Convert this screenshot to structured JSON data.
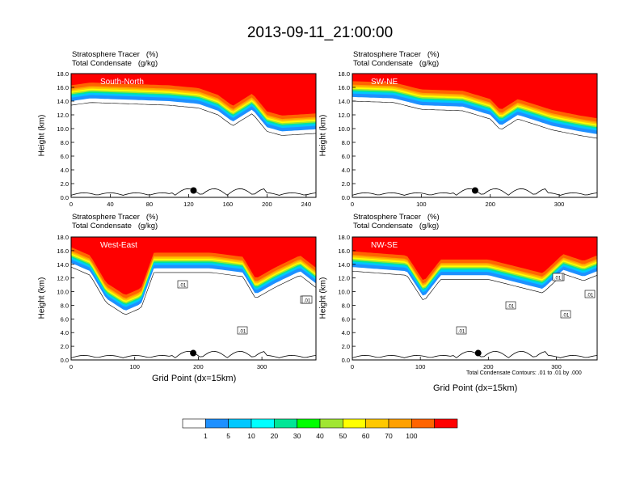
{
  "title": "2013-09-11_21:00:00",
  "panel_label_line1": "Stratosphere Tracer   (%)",
  "panel_label_line2": "Total Condensate   (g/kg)",
  "ylabel": "Height (km)",
  "xlabel": "Grid Point (dx=15km)",
  "contour_note": "Total Condensate Contours: .01 to .01 by .000",
  "colors": [
    "#ffffff",
    "#1e90ff",
    "#00c8ff",
    "#00ffff",
    "#00e696",
    "#00ff00",
    "#a0e632",
    "#ffff00",
    "#ffc800",
    "#ffa000",
    "#ff6400",
    "#ff0000"
  ],
  "colorbar_labels": [
    "1",
    "5",
    "10",
    "20",
    "30",
    "40",
    "50",
    "60",
    "70",
    "100"
  ],
  "chart_data": [
    {
      "type": "heatmap",
      "title": "South-North",
      "xlabel": "",
      "ylabel": "Height (km)",
      "xlim": [
        0,
        250
      ],
      "ylim": [
        0,
        18
      ],
      "x_ticks": [
        0,
        40,
        80,
        120,
        160,
        200,
        240
      ],
      "y_ticks": [
        "0.0",
        "2.0",
        "4.0",
        "6.0",
        "8.0",
        "10.0",
        "12.0",
        "14.0",
        "16.0",
        "18.0"
      ],
      "tracer_boundary_km": [
        [
          0,
          14.0
        ],
        [
          20,
          14.4
        ],
        [
          60,
          14.2
        ],
        [
          100,
          14.0
        ],
        [
          130,
          13.6
        ],
        [
          150,
          12.6
        ],
        [
          165,
          11.0
        ],
        [
          185,
          12.8
        ],
        [
          200,
          10.2
        ],
        [
          215,
          9.6
        ],
        [
          250,
          9.9
        ]
      ],
      "marker": {
        "x": 125,
        "y": 1.0
      },
      "contour_labels": []
    },
    {
      "type": "heatmap",
      "title": "SW-NE",
      "xlabel": "",
      "ylabel": "Height (km)",
      "xlim": [
        0,
        355
      ],
      "ylim": [
        0,
        18
      ],
      "x_ticks": [
        0,
        100,
        200,
        300
      ],
      "y_ticks": [
        "0.0",
        "2.0",
        "4.0",
        "6.0",
        "8.0",
        "10.0",
        "12.0",
        "14.0",
        "16.0",
        "18.0"
      ],
      "tracer_boundary_km": [
        [
          0,
          14.6
        ],
        [
          60,
          14.4
        ],
        [
          100,
          13.4
        ],
        [
          160,
          13.2
        ],
        [
          200,
          12.0
        ],
        [
          215,
          10.4
        ],
        [
          240,
          12.0
        ],
        [
          290,
          10.4
        ],
        [
          330,
          9.6
        ],
        [
          355,
          9.2
        ]
      ],
      "marker": {
        "x": 178,
        "y": 1.0
      },
      "contour_labels": []
    },
    {
      "type": "heatmap",
      "title": "West-East",
      "xlabel": "Grid Point (dx=15km)",
      "ylabel": "Height (km)",
      "xlim": [
        0,
        385
      ],
      "ylim": [
        0,
        18
      ],
      "x_ticks": [
        0,
        100,
        200,
        300
      ],
      "y_ticks": [
        "0.0",
        "2.0",
        "4.0",
        "6.0",
        "8.0",
        "10.0",
        "12.0",
        "14.0",
        "16.0",
        "18.0"
      ],
      "tracer_boundary_km": [
        [
          0,
          14.2
        ],
        [
          30,
          13.0
        ],
        [
          55,
          9.0
        ],
        [
          85,
          7.2
        ],
        [
          110,
          8.2
        ],
        [
          130,
          13.4
        ],
        [
          220,
          13.4
        ],
        [
          270,
          12.8
        ],
        [
          290,
          9.6
        ],
        [
          320,
          11.2
        ],
        [
          360,
          13.0
        ],
        [
          385,
          11.2
        ]
      ],
      "marker": {
        "x": 192,
        "y": 1.0
      },
      "contour_labels": [
        ".01",
        ".01",
        ".01",
        ".01"
      ]
    },
    {
      "type": "heatmap",
      "title": "NW-SE",
      "xlabel": "Grid Point (dx=15km)",
      "ylabel": "Height (km)",
      "xlim": [
        0,
        360
      ],
      "ylim": [
        0,
        18
      ],
      "x_ticks": [
        0,
        100,
        200,
        300
      ],
      "y_ticks": [
        "0.0",
        "2.0",
        "4.0",
        "6.0",
        "8.0",
        "10.0",
        "12.0",
        "14.0",
        "16.0",
        "18.0"
      ],
      "tracer_boundary_km": [
        [
          0,
          13.6
        ],
        [
          80,
          13.0
        ],
        [
          105,
          9.2
        ],
        [
          130,
          12.4
        ],
        [
          200,
          12.4
        ],
        [
          240,
          11.4
        ],
        [
          280,
          10.4
        ],
        [
          310,
          13.2
        ],
        [
          340,
          12.2
        ],
        [
          360,
          13.0
        ]
      ],
      "marker": {
        "x": 185,
        "y": 1.0
      },
      "contour_labels": [
        ".01",
        ".01",
        ".01",
        ".01",
        ".01",
        ".01"
      ]
    }
  ]
}
